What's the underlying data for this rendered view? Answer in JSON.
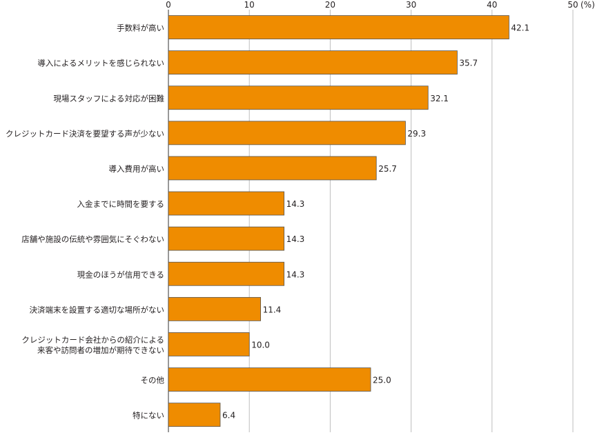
{
  "chart_data": {
    "type": "bar",
    "orientation": "horizontal",
    "unit_label": "(%)",
    "xlim": [
      0,
      50
    ],
    "ticks": [
      0,
      10,
      20,
      30,
      40,
      50
    ],
    "grid": true,
    "bar_color": "#ef8c00",
    "categories": [
      "手数料が高い",
      "導入によるメリットを感じられない",
      "現場スタッフによる対応が困難",
      "クレジットカード決済を要望する声が少ない",
      "導入費用が高い",
      "入金までに時間を要する",
      "店舗や施設の伝統や雰囲気にそぐわない",
      "現金のほうが信用できる",
      "決済端末を設置する適切な場所がない",
      "クレジットカード会社からの紹介による\n来客や訪問者の増加が期待できない",
      "その他",
      "特にない"
    ],
    "values": [
      42.1,
      35.7,
      32.1,
      29.3,
      25.7,
      14.3,
      14.3,
      14.3,
      11.4,
      10.0,
      25.0,
      6.4
    ],
    "value_labels": [
      "42.1",
      "35.7",
      "32.1",
      "29.3",
      "25.7",
      "14.3",
      "14.3",
      "14.3",
      "11.4",
      "10.0",
      "25.0",
      "6.4"
    ]
  }
}
